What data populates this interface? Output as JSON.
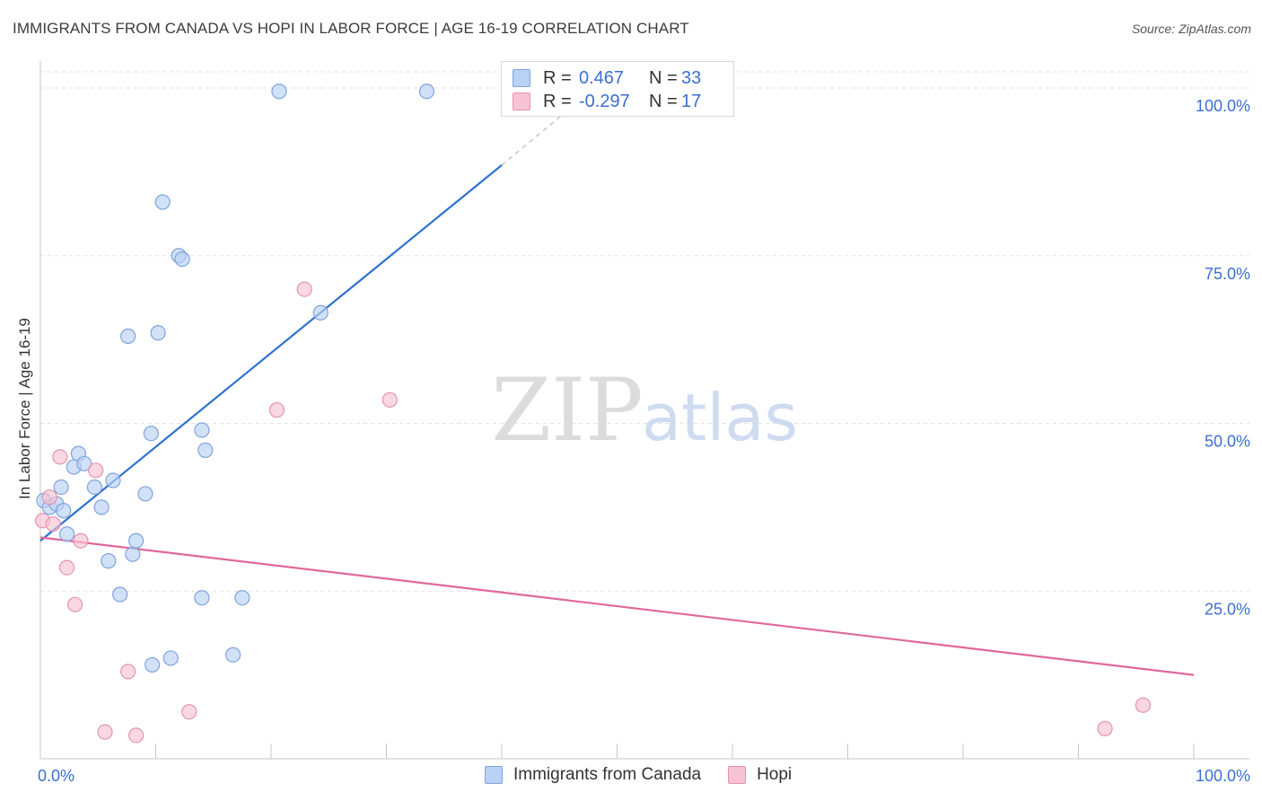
{
  "header": {
    "title": "IMMIGRANTS FROM CANADA VS HOPI IN LABOR FORCE | AGE 16-19 CORRELATION CHART",
    "source": "Source: ZipAtlas.com"
  },
  "watermark": {
    "zip": "ZIP",
    "atlas": "atlas"
  },
  "legend": {
    "r_label": "R =",
    "n_label": "N =",
    "series": [
      {
        "name": "Immigrants from Canada",
        "r": "0.467",
        "n": "33",
        "color": "#4a7fd6",
        "fill": "#b9d1f2"
      },
      {
        "name": "Hopi",
        "r": "-0.297",
        "n": "17",
        "color": "#e0729a",
        "fill": "#f7c3d3"
      }
    ]
  },
  "chart_data": {
    "type": "scatter",
    "title": "IMMIGRANTS FROM CANADA VS HOPI IN LABOR FORCE | AGE 16-19 CORRELATION CHART",
    "xlabel": "",
    "ylabel": "In Labor Force | Age 16-19",
    "xlim": [
      0,
      100
    ],
    "ylim": [
      0,
      100
    ],
    "x_tick_labels": [
      "0.0%",
      "100.0%"
    ],
    "y_tick_labels": [
      "25.0%",
      "50.0%",
      "75.0%",
      "100.0%"
    ],
    "y_ticks": [
      25,
      50,
      75,
      100
    ],
    "grid": true,
    "legend_position": "top-center",
    "series": [
      {
        "name": "Immigrants from Canada",
        "color": "#4a7fd6",
        "points": [
          [
            0.3,
            38.5
          ],
          [
            0.8,
            37.5
          ],
          [
            1.4,
            38
          ],
          [
            1.8,
            40.5
          ],
          [
            2.0,
            37.0
          ],
          [
            2.3,
            33.5
          ],
          [
            2.9,
            43.5
          ],
          [
            3.3,
            45.5
          ],
          [
            3.8,
            44.0
          ],
          [
            4.7,
            40.5
          ],
          [
            5.3,
            37.5
          ],
          [
            6.3,
            41.5
          ],
          [
            5.9,
            29.5
          ],
          [
            6.9,
            24.5
          ],
          [
            7.6,
            63.0
          ],
          [
            8.0,
            30.5
          ],
          [
            8.3,
            32.5
          ],
          [
            9.1,
            39.5
          ],
          [
            9.6,
            48.5
          ],
          [
            9.7,
            14.0
          ],
          [
            10.2,
            63.5
          ],
          [
            10.6,
            83.0
          ],
          [
            11.3,
            15.0
          ],
          [
            12.0,
            75.0
          ],
          [
            12.3,
            74.5
          ],
          [
            14.0,
            49.0
          ],
          [
            14.3,
            46.0
          ],
          [
            14.0,
            24.0
          ],
          [
            16.7,
            15.5
          ],
          [
            17.5,
            24.0
          ],
          [
            20.7,
            99.5
          ],
          [
            24.3,
            66.5
          ],
          [
            33.5,
            99.5
          ]
        ],
        "trend": {
          "x1": 0,
          "y1": 32.5,
          "x2": 40,
          "y2": 88.5,
          "dashed_to_x": 47,
          "dashed_to_y": 98.5
        }
      },
      {
        "name": "Hopi",
        "color": "#e0729a",
        "points": [
          [
            0.2,
            35.5
          ],
          [
            0.8,
            39.0
          ],
          [
            1.1,
            35.0
          ],
          [
            1.7,
            45.0
          ],
          [
            2.3,
            28.5
          ],
          [
            3.0,
            23.0
          ],
          [
            3.5,
            32.5
          ],
          [
            4.8,
            43.0
          ],
          [
            5.6,
            4.0
          ],
          [
            7.6,
            13.0
          ],
          [
            8.3,
            3.5
          ],
          [
            12.9,
            7.0
          ],
          [
            20.5,
            52.0
          ],
          [
            22.9,
            70.0
          ],
          [
            30.3,
            53.5
          ],
          [
            92.3,
            4.5
          ],
          [
            95.6,
            8.0
          ]
        ],
        "trend": {
          "x1": 0,
          "y1": 33.0,
          "x2": 100,
          "y2": 12.5
        }
      }
    ]
  }
}
